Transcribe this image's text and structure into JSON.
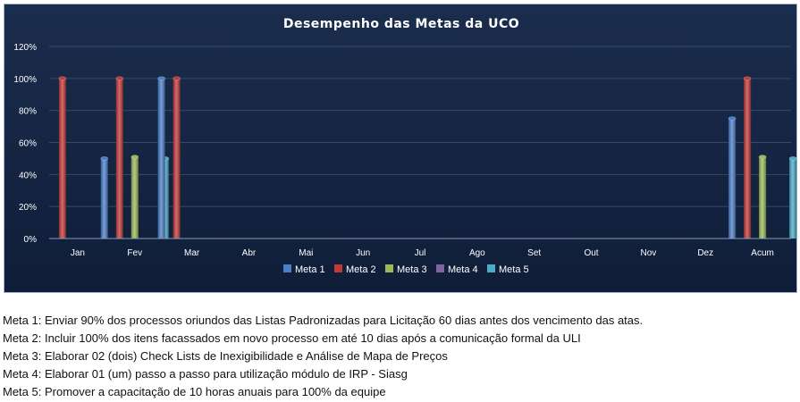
{
  "chart_data": {
    "type": "bar",
    "title": "Desempenho das Metas da UCO",
    "xlabel": "",
    "ylabel": "",
    "categories": [
      "Jan",
      "Fev",
      "Mar",
      "Abr",
      "Mai",
      "Jun",
      "Jul",
      "Ago",
      "Set",
      "Out",
      "Nov",
      "Dez",
      "Acum"
    ],
    "ylim": [
      0,
      1.2
    ],
    "yticks": [
      "0%",
      "20%",
      "40%",
      "60%",
      "80%",
      "100%",
      "120%"
    ],
    "grid": true,
    "legend_position": "bottom",
    "series": [
      {
        "name": "Meta 1",
        "color": "#4a7fc9",
        "values": [
          0,
          0.5,
          1.0,
          0,
          0,
          0,
          0,
          0,
          0,
          0,
          0,
          0,
          0.75
        ]
      },
      {
        "name": "Meta 2",
        "color": "#c0393b",
        "values": [
          1.0,
          1.0,
          1.0,
          0,
          0,
          0,
          0,
          0,
          0,
          0,
          0,
          0,
          1.0
        ]
      },
      {
        "name": "Meta 3",
        "color": "#9bbb59",
        "values": [
          0,
          0.51,
          0,
          0,
          0,
          0,
          0,
          0,
          0,
          0,
          0,
          0,
          0.51
        ]
      },
      {
        "name": "Meta 4",
        "color": "#8064a2",
        "values": [
          0,
          0,
          0,
          0,
          0,
          0,
          0,
          0,
          0,
          0,
          0,
          0,
          0
        ]
      },
      {
        "name": "Meta 5",
        "color": "#4bacc6",
        "values": [
          0,
          0.5,
          0,
          0,
          0,
          0,
          0,
          0,
          0,
          0,
          0,
          0,
          0.5
        ]
      }
    ]
  },
  "notes": [
    "Meta 1: Enviar 90% dos processos oriundos das Listas Padronizadas para Licitação 60 dias antes dos vencimento das atas.",
    "Meta 2: Incluir 100% dos itens facassados em novo processo em até 10 dias após a comunicação formal da ULI",
    "Meta 3: Elaborar 02 (dois) Check Lists de Inexigibilidade e Análise de Mapa de Preços",
    "Meta 4: Elaborar 01 (um) passo a passo para utilização  módulo de IRP - Siasg",
    "Meta 5: Promover a capacitação de 10 horas anuais para 100% da equipe"
  ]
}
